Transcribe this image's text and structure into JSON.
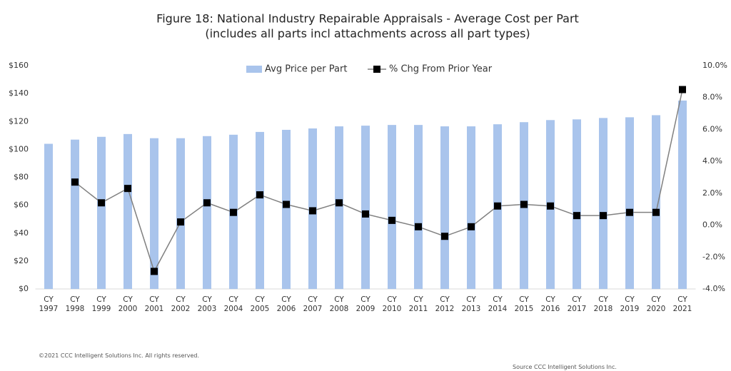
{
  "chart_data": {
    "type": "bar-line",
    "title": "Figure 18: National Industry Repairable Appraisals - Average Cost per Part",
    "subtitle": "(includes all parts incl attachments across all part types)",
    "categories": [
      "CY 1997",
      "CY 1998",
      "CY 1999",
      "CY 2000",
      "CY 2001",
      "CY 2002",
      "CY 2003",
      "CY 2004",
      "CY 2005",
      "CY 2006",
      "CY 2007",
      "CY 2008",
      "CY 2009",
      "CY 2010",
      "CY 2011",
      "CY 2012",
      "CY 2013",
      "CY 2014",
      "CY 2015",
      "CY 2016",
      "CY 2017",
      "CY 2018",
      "CY 2019",
      "CY 2020",
      "CY 2021"
    ],
    "series": [
      {
        "name": "Avg Price per Part",
        "color": "#a9c4ec",
        "kind": "bar",
        "values": [
          104,
          107,
          109,
          111,
          108,
          108,
          109.5,
          110.5,
          112.5,
          114,
          115,
          116.5,
          117,
          117.5,
          117.5,
          116.5,
          116.5,
          118,
          119.5,
          121,
          121.5,
          122.5,
          123,
          124.5,
          135
        ]
      },
      {
        "name": "% Chg From Prior Year",
        "color": "#000000",
        "line_color": "#808080",
        "kind": "line",
        "axis": "y2",
        "values": [
          null,
          2.7,
          1.4,
          2.3,
          -2.9,
          0.2,
          1.4,
          0.8,
          1.9,
          1.3,
          0.9,
          1.4,
          0.7,
          0.3,
          -0.1,
          -0.7,
          -0.1,
          1.2,
          1.3,
          1.2,
          0.6,
          0.6,
          0.8,
          0.8,
          8.5
        ]
      }
    ],
    "ylim": [
      0,
      160
    ],
    "yticks": [
      {
        "value": 0,
        "label": "$0"
      },
      {
        "value": 20,
        "label": "$20"
      },
      {
        "value": 40,
        "label": "$40"
      },
      {
        "value": 60,
        "label": "$60"
      },
      {
        "value": 80,
        "label": "$80"
      },
      {
        "value": 100,
        "label": "$100"
      },
      {
        "value": 120,
        "label": "$120"
      },
      {
        "value": 140,
        "label": "$140"
      },
      {
        "value": 160,
        "label": "$160"
      }
    ],
    "y2lim": [
      -4,
      10
    ],
    "y2ticks": [
      {
        "value": -4,
        "label": "-4.0%"
      },
      {
        "value": -2,
        "label": "-2.0%"
      },
      {
        "value": 0,
        "label": "0.0%"
      },
      {
        "value": 2,
        "label": "2.0%"
      },
      {
        "value": 4,
        "label": "4.0%"
      },
      {
        "value": 6,
        "label": "6.0%"
      },
      {
        "value": 8,
        "label": "8.0%"
      },
      {
        "value": 10,
        "label": "10.0%"
      }
    ],
    "legend": "top",
    "copyright": "©2021 CCC Intelligent Solutions Inc. All rights reserved.",
    "source": "Source CCC Intelligent Solutions Inc."
  }
}
